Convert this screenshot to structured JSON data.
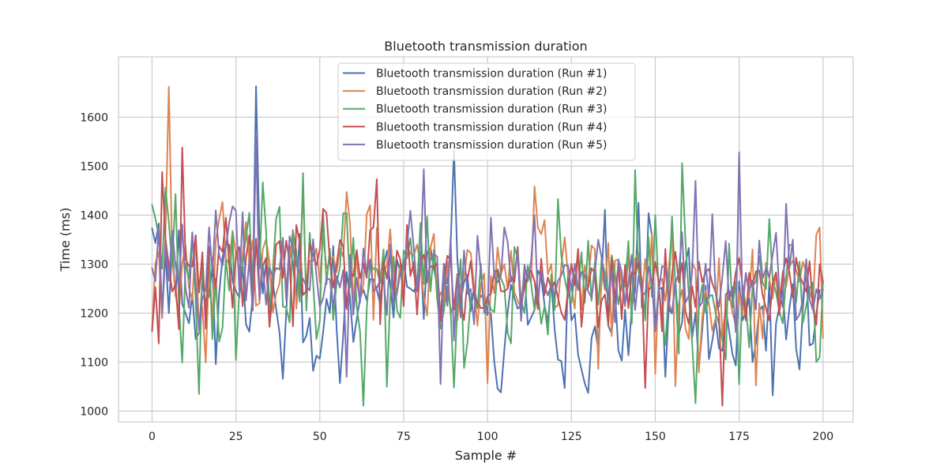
{
  "chart_data": {
    "type": "line",
    "title": "Bluetooth transmission duration",
    "xlabel": "Sample #",
    "ylabel": "Time (ms)",
    "xlim": [
      -10,
      209
    ],
    "ylim": [
      978,
      1723
    ],
    "xticks": [
      0,
      25,
      50,
      75,
      100,
      125,
      150,
      175,
      200
    ],
    "yticks": [
      1000,
      1100,
      1200,
      1300,
      1400,
      1500,
      1600
    ],
    "grid": true,
    "legend_position": "top-center",
    "colors": {
      "series": [
        "#4c72b0",
        "#dd8452",
        "#55a868",
        "#c44e52",
        "#8172b3"
      ],
      "grid": "#cccccc",
      "axes_edge": "#cccccc",
      "text": "#262626",
      "background": "#ffffff"
    },
    "series": [
      {
        "name": "Bluetooth transmission duration (Run #1)",
        "values": [
          1373,
          1343,
          1383,
          1190,
          1326,
          1200,
          1338,
          1235,
          1369,
          1219,
          1199,
          1179,
          1238,
          1147,
          1160,
          1264,
          1220,
          1234,
          1299,
          1096,
          1239,
          1313,
          1345,
          1339,
          1265,
          1245,
          1232,
          1295,
          1177,
          1162,
          1234,
          1663,
          1354,
          1240,
          1305,
          1180,
          1264,
          1208,
          1160,
          1066,
          1202,
          1337,
          1301,
          1226,
          1362,
          1140,
          1154,
          1190,
          1082,
          1113,
          1107,
          1161,
          1229,
          1200,
          1337,
          1171,
          1057,
          1156,
          1284,
          1233,
          1141,
          1187,
          1230,
          1248,
          1226,
          1269,
          1269,
          1247,
          1219,
          1294,
          1327,
          1257,
          1191,
          1309,
          1284,
          1309,
          1254,
          1250,
          1244,
          1259,
          1325,
          1188,
          1323,
          1334,
          1291,
          1257,
          1187,
          1301,
          1260,
          1339,
          1533,
          1311,
          1223,
          1264,
          1278,
          1204,
          1253,
          1214,
          1236,
          1231,
          1201,
          1200,
          1101,
          1046,
          1038,
          1124,
          1202,
          1258,
          1231,
          1209,
          1216,
          1283,
          1176,
          1191,
          1206,
          1287,
          1274,
          1216,
          1180,
          1266,
          1167,
          1105,
          1102,
          1047,
          1281,
          1185,
          1199,
          1115,
          1085,
          1056,
          1037,
          1149,
          1173,
          1124,
          1270,
          1411,
          1174,
          1158,
          1245,
          1124,
          1103,
          1207,
          1114,
          1212,
          1245,
          1425,
          1212,
          1200,
          1404,
          1357,
          1169,
          1248,
          1252,
          1070,
          1208,
          1199,
          1269,
          1156,
          1181,
          1300,
          1333,
          1150,
          1201,
          1087,
          1165,
          1256,
          1106,
          1144,
          1186,
          1128,
          1123,
          1210,
          1164,
          1117,
          1093,
          1265,
          1185,
          1202,
          1231,
          1100,
          1140,
          1205,
          1214,
          1123,
          1265,
          1032,
          1179,
          1213,
          1247,
          1146,
          1211,
          1259,
          1127,
          1085,
          1210,
          1296,
          1134,
          1138,
          1198,
          1247
        ]
      },
      {
        "name": "Bluetooth transmission duration (Run #2)",
        "values": [
          1166,
          1302,
          1325,
          1192,
          1363,
          1662,
          1314,
          1238,
          1199,
          1302,
          1337,
          1252,
          1226,
          1358,
          1160,
          1213,
          1099,
          1300,
          1184,
          1348,
          1392,
          1427,
          1312,
          1300,
          1368,
          1322,
          1290,
          1317,
          1386,
          1301,
          1348,
          1215,
          1220,
          1330,
          1351,
          1304,
          1201,
          1240,
          1260,
          1334,
          1256,
          1307,
          1370,
          1209,
          1285,
          1453,
          1235,
          1307,
          1306,
          1332,
          1263,
          1358,
          1291,
          1307,
          1316,
          1284,
          1331,
          1315,
          1447,
          1384,
          1219,
          1320,
          1228,
          1259,
          1402,
          1420,
          1186,
          1374,
          1260,
          1280,
          1297,
          1371,
          1260,
          1246,
          1300,
          1245,
          1339,
          1321,
          1317,
          1340,
          1297,
          1233,
          1195,
          1333,
          1362,
          1228,
          1242,
          1214,
          1305,
          1196,
          1224,
          1185,
          1255,
          1273,
          1329,
          1323,
          1253,
          1174,
          1259,
          1281,
          1057,
          1276,
          1241,
          1334,
          1281,
          1300,
          1250,
          1327,
          1243,
          1225,
          1209,
          1292,
          1278,
          1264,
          1459,
          1375,
          1361,
          1390,
          1279,
          1300,
          1211,
          1216,
          1298,
          1355,
          1279,
          1253,
          1209,
          1330,
          1206,
          1297,
          1262,
          1338,
          1330,
          1086,
          1287,
          1247,
          1343,
          1153,
          1307,
          1310,
          1258,
          1213,
          1325,
          1198,
          1311,
          1323,
          1230,
          1311,
          1233,
          1364,
          1076,
          1266,
          1270,
          1225,
          1290,
          1368,
          1051,
          1220,
          1248,
          1168,
          1147,
          1303,
          1289,
          1079,
          1190,
          1246,
          1219,
          1164,
          1189,
          1312,
          1155,
          1211,
          1240,
          1201,
          1175,
          1245,
          1195,
          1282,
          1234,
          1330,
          1052,
          1220,
          1148,
          1303,
          1270,
          1230,
          1283,
          1219,
          1285,
          1254,
          1295,
          1307,
          1287,
          1264,
          1305,
          1283,
          1245,
          1223,
          1360,
          1375,
          1149
        ]
      },
      {
        "name": "Bluetooth transmission duration (Run #3)",
        "values": [
          1421,
          1393,
          1358,
          1290,
          1456,
          1385,
          1297,
          1443,
          1218,
          1099,
          1302,
          1270,
          1363,
          1227,
          1035,
          1307,
          1190,
          1327,
          1147,
          1270,
          1142,
          1170,
          1309,
          1246,
          1366,
          1104,
          1243,
          1305,
          1355,
          1405,
          1246,
          1343,
          1290,
          1467,
          1366,
          1210,
          1286,
          1393,
          1417,
          1213,
          1212,
          1181,
          1367,
          1327,
          1223,
          1486,
          1205,
          1364,
          1264,
          1147,
          1184,
          1405,
          1259,
          1331,
          1186,
          1260,
          1294,
          1404,
          1404,
          1252,
          1354,
          1213,
          1163,
          1011,
          1209,
          1303,
          1290,
          1290,
          1261,
          1330,
          1050,
          1232,
          1315,
          1206,
          1190,
          1328,
          1312,
          1353,
          1282,
          1254,
          1384,
          1259,
          1397,
          1244,
          1329,
          1228,
          1168,
          1205,
          1255,
          1205,
          1048,
          1216,
          1310,
          1088,
          1139,
          1231,
          1231,
          1210,
          1301,
          1200,
          1233,
          1207,
          1202,
          1290,
          1271,
          1255,
          1160,
          1138,
          1335,
          1313,
          1225,
          1200,
          1297,
          1259,
          1207,
          1241,
          1178,
          1215,
          1156,
          1279,
          1206,
          1433,
          1316,
          1270,
          1237,
          1221,
          1279,
          1247,
          1324,
          1221,
          1348,
          1225,
          1304,
          1217,
          1310,
          1281,
          1227,
          1318,
          1280,
          1218,
          1259,
          1254,
          1347,
          1178,
          1492,
          1284,
          1260,
          1185,
          1355,
          1233,
          1400,
          1250,
          1197,
          1135,
          1244,
          1397,
          1255,
          1117,
          1506,
          1346,
          1237,
          1138,
          1016,
          1211,
          1258,
          1201,
          1234,
          1237,
          1200,
          1178,
          1144,
          1105,
          1342,
          1211,
          1264,
          1055,
          1256,
          1217,
          1130,
          1257,
          1263,
          1316,
          1262,
          1249,
          1392,
          1267,
          1242,
          1203,
          1179,
          1273,
          1339,
          1340,
          1222,
          1305,
          1180,
          1215,
          1250,
          1262,
          1100,
          1110,
          1265
        ]
      },
      {
        "name": "Bluetooth transmission duration (Run #4)",
        "values": [
          1163,
          1253,
          1138,
          1488,
          1352,
          1297,
          1244,
          1258,
          1167,
          1538,
          1309,
          1296,
          1295,
          1359,
          1242,
          1324,
          1168,
          1336,
          1305,
          1251,
          1337,
          1325,
          1395,
          1299,
          1211,
          1323,
          1335,
          1214,
          1314,
          1359,
          1206,
          1352,
          1236,
          1296,
          1313,
          1172,
          1244,
          1340,
          1347,
          1272,
          1348,
          1304,
          1173,
          1380,
          1345,
          1237,
          1245,
          1342,
          1320,
          1297,
          1330,
          1413,
          1404,
          1307,
          1252,
          1298,
          1349,
          1337,
          1208,
          1285,
          1275,
          1329,
          1271,
          1301,
          1272,
          1369,
          1375,
          1473,
          1177,
          1306,
          1270,
          1327,
          1238,
          1328,
          1309,
          1214,
          1380,
          1276,
          1304,
          1197,
          1307,
          1319,
          1277,
          1296,
          1291,
          1303,
          1184,
          1258,
          1317,
          1308,
          1207,
          1280,
          1215,
          1186,
          1268,
          1306,
          1236,
          1223,
          1210,
          1211,
          1234,
          1239,
          1284,
          1287,
          1245,
          1244,
          1250,
          1275,
          1263,
          1335,
          1211,
          1256,
          1276,
          1287,
          1266,
          1208,
          1311,
          1237,
          1273,
          1250,
          1263,
          1232,
          1201,
          1186,
          1249,
          1301,
          1257,
          1331,
          1172,
          1245,
          1252,
          1292,
          1281,
          1171,
          1226,
          1238,
          1175,
          1313,
          1226,
          1302,
          1188,
          1298,
          1210,
          1284,
          1280,
          1305,
          1267,
          1047,
          1249,
          1253,
          1305,
          1265,
          1163,
          1331,
          1208,
          1281,
          1325,
          1263,
          1302,
          1203,
          1178,
          1255,
          1212,
          1305,
          1263,
          1284,
          1290,
          1261,
          1242,
          1196,
          1011,
          1238,
          1246,
          1234,
          1284,
          1313,
          1256,
          1185,
          1282,
          1253,
          1285,
          1287,
          1237,
          1210,
          1185,
          1262,
          1283,
          1197,
          1279,
          1312,
          1283,
          1232,
          1313,
          1276,
          1261,
          1244,
          1306,
          1211,
          1176,
          1300,
          1263
        ]
      },
      {
        "name": "Bluetooth transmission duration (Run #5)",
        "values": [
          1292,
          1265,
          1375,
          1201,
          1342,
          1266,
          1368,
          1298,
          1252,
          1381,
          1250,
          1211,
          1365,
          1258,
          1165,
          1230,
          1248,
          1375,
          1281,
          1410,
          1318,
          1297,
          1335,
          1385,
          1418,
          1409,
          1246,
          1406,
          1226,
          1309,
          1205,
          1562,
          1226,
          1300,
          1217,
          1293,
          1274,
          1292,
          1289,
          1354,
          1227,
          1357,
          1334,
          1299,
          1282,
          1270,
          1255,
          1246,
          1351,
          1276,
          1213,
          1230,
          1271,
          1269,
          1211,
          1276,
          1252,
          1288,
          1070,
          1319,
          1197,
          1272,
          1221,
          1332,
          1279,
          1310,
          1244,
          1251,
          1267,
          1269,
          1196,
          1340,
          1217,
          1240,
          1283,
          1290,
          1338,
          1409,
          1334,
          1244,
          1304,
          1494,
          1262,
          1310,
          1321,
          1315,
          1055,
          1296,
          1215,
          1354,
          1144,
          1276,
          1191,
          1328,
          1239,
          1249,
          1177,
          1358,
          1284,
          1206,
          1196,
          1395,
          1273,
          1263,
          1276,
          1375,
          1345,
          1264,
          1279,
          1326,
          1184,
          1299,
          1265,
          1308,
          1400,
          1227,
          1285,
          1256,
          1236,
          1258,
          1234,
          1266,
          1277,
          1298,
          1297,
          1245,
          1301,
          1247,
          1284,
          1278,
          1245,
          1231,
          1284,
          1350,
          1313,
          1256,
          1233,
          1288,
          1181,
          1309,
          1284,
          1217,
          1262,
          1319,
          1206,
          1276,
          1242,
          1238,
          1295,
          1260,
          1163,
          1241,
          1296,
          1293,
          1221,
          1200,
          1262,
          1281,
          1365,
          1221,
          1236,
          1283,
          1470,
          1212,
          1222,
          1301,
          1230,
          1402,
          1240,
          1213,
          1274,
          1347,
          1227,
          1253,
          1161,
          1528,
          1217,
          1282,
          1246,
          1266,
          1207,
          1348,
          1271,
          1291,
          1273,
          1319,
          1364,
          1244,
          1212,
          1423,
          1292,
          1350,
          1186,
          1197,
          1228,
          1310,
          1227,
          1206,
          1249,
          1229,
          1249
        ]
      }
    ]
  }
}
